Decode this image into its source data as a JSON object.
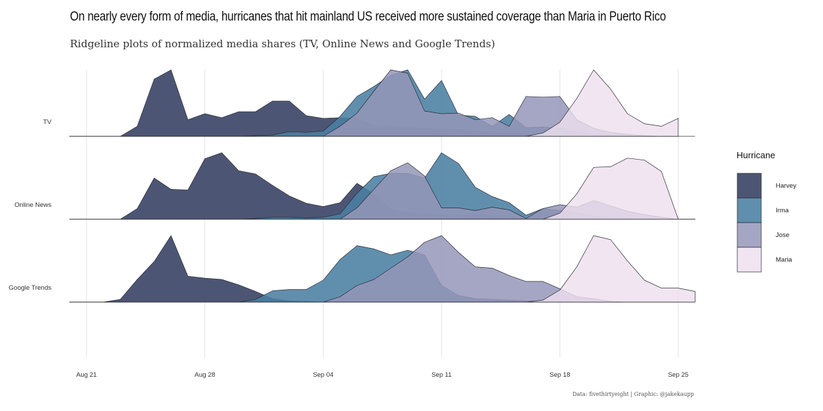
{
  "chart_data": {
    "type": "area",
    "title": "On nearly every form of media, hurricanes that hit mainland US received more sustained coverage than Maria in Puerto Rico",
    "subtitle": "Ridgeline plots of normalized media shares (TV, Online News and Google Trends)",
    "caption": "Data: fivethirtyeight | Graphic: @jakekaupp",
    "x_ticks": [
      "Aug 21",
      "Aug 28",
      "Sep 04",
      "Sep 11",
      "Sep 18",
      "Sep 25"
    ],
    "x_range": [
      "Aug 20",
      "Sep 26"
    ],
    "rows": [
      "TV",
      "Online News",
      "Google Trends"
    ],
    "legend": {
      "title": "Hurricane",
      "position": "right"
    },
    "grid": true,
    "colors": {
      "Harvey": "#3d4868",
      "Irma": "#4a80a3",
      "Jose": "#9596b8",
      "Maria": "#eddfee"
    },
    "dates": [
      "Aug 20",
      "Aug 21",
      "Aug 22",
      "Aug 23",
      "Aug 24",
      "Aug 25",
      "Aug 26",
      "Aug 27",
      "Aug 28",
      "Aug 29",
      "Aug 30",
      "Aug 31",
      "Sep 01",
      "Sep 02",
      "Sep 03",
      "Sep 04",
      "Sep 05",
      "Sep 06",
      "Sep 07",
      "Sep 08",
      "Sep 09",
      "Sep 10",
      "Sep 11",
      "Sep 12",
      "Sep 13",
      "Sep 14",
      "Sep 15",
      "Sep 16",
      "Sep 17",
      "Sep 18",
      "Sep 19",
      "Sep 20",
      "Sep 21",
      "Sep 22",
      "Sep 23",
      "Sep 24",
      "Sep 25",
      "Sep 26"
    ],
    "series": [
      {
        "row": "TV",
        "hurricane": "Harvey",
        "values": [
          0,
          0,
          0,
          0,
          0.15,
          0.86,
          1.0,
          0.25,
          0.34,
          0.28,
          0.37,
          0.37,
          0.53,
          0.53,
          0.31,
          0.27,
          0.28,
          0.27,
          0.17,
          0.14,
          0.13,
          0.12,
          0.11,
          0.1,
          0.08,
          0.06,
          0.05,
          0.04,
          0.03,
          0.02,
          0.02,
          0.01,
          0.01,
          0,
          0,
          0,
          0,
          null
        ]
      },
      {
        "row": "TV",
        "hurricane": "Irma",
        "values": [
          0,
          0,
          0,
          0,
          0,
          0,
          0,
          0,
          0,
          0,
          0,
          0.01,
          0.02,
          0.07,
          0.06,
          0.08,
          0.3,
          0.6,
          0.75,
          0.92,
          1.0,
          0.56,
          0.84,
          0.32,
          0.3,
          0.15,
          0.33,
          0.13,
          0.14,
          0.12,
          0.07,
          0.03,
          0.02,
          0.01,
          0,
          0,
          0,
          null
        ]
      },
      {
        "row": "TV",
        "hurricane": "Jose",
        "values": [
          0,
          0,
          0,
          0,
          0,
          0,
          0,
          0,
          0,
          0,
          0,
          0,
          0,
          0,
          0,
          0,
          0.15,
          0.35,
          0.68,
          1.0,
          0.95,
          0.38,
          0.34,
          0.35,
          0.25,
          0.28,
          0.15,
          0.6,
          0.59,
          0.6,
          0.25,
          0.12,
          0.06,
          0.03,
          0.01,
          0,
          0,
          null
        ]
      },
      {
        "row": "TV",
        "hurricane": "Maria",
        "values": [
          0,
          0,
          0,
          0,
          0,
          0,
          0,
          0,
          0,
          0,
          0,
          0,
          0,
          0,
          0,
          0,
          0,
          0,
          0,
          0,
          0,
          0,
          0,
          0,
          0,
          0,
          0,
          0,
          0.05,
          0.21,
          0.57,
          1.0,
          0.71,
          0.34,
          0.19,
          0.15,
          0.27,
          null
        ]
      },
      {
        "row": "Online News",
        "hurricane": "Harvey",
        "values": [
          0,
          0,
          0,
          0,
          0.16,
          0.62,
          0.45,
          0.44,
          0.91,
          1.0,
          0.73,
          0.68,
          0.51,
          0.35,
          0.24,
          0.19,
          0.25,
          0.54,
          0.38,
          0.15,
          0.1,
          0.07,
          0.06,
          0.06,
          0.07,
          0.05,
          0.05,
          0,
          0,
          0,
          0,
          0,
          0,
          0,
          0,
          0,
          0,
          0
        ]
      },
      {
        "row": "Online News",
        "hurricane": "Irma",
        "values": [
          0,
          0,
          0,
          0,
          0,
          0,
          0,
          0,
          0,
          0,
          0,
          0.01,
          0.03,
          0.03,
          0.02,
          0.03,
          0.08,
          0.39,
          0.64,
          0.69,
          0.69,
          0.62,
          1.0,
          0.84,
          0.48,
          0.34,
          0.25,
          0.06,
          0.16,
          0.13,
          0.1,
          0.05,
          0.03,
          0.01,
          0,
          0,
          0,
          0
        ]
      },
      {
        "row": "Online News",
        "hurricane": "Jose",
        "values": [
          0,
          0,
          0,
          0,
          0,
          0,
          0,
          0,
          0,
          0,
          0,
          0,
          0,
          0,
          0,
          0,
          0,
          0.17,
          0.45,
          0.73,
          0.85,
          0.65,
          0.17,
          0.17,
          0.13,
          0.18,
          0.14,
          0.01,
          0.16,
          0.22,
          0.18,
          0.28,
          0.2,
          0.12,
          0.07,
          0.03,
          0,
          0
        ]
      },
      {
        "row": "Online News",
        "hurricane": "Maria",
        "values": [
          0,
          0,
          0,
          0,
          0,
          0,
          0,
          0,
          0,
          0,
          0,
          0,
          0,
          0,
          0,
          0,
          0,
          0,
          0,
          0,
          0,
          0,
          0,
          0,
          0,
          0,
          0,
          0,
          0,
          0.09,
          0.38,
          0.78,
          0.79,
          0.92,
          0.89,
          0.72,
          0,
          0
        ]
      },
      {
        "row": "Google Trends",
        "hurricane": "Harvey",
        "values": [
          0,
          0,
          0,
          0.04,
          0.34,
          0.61,
          1.0,
          0.39,
          0.36,
          0.34,
          0.26,
          0.16,
          0.05,
          0.02,
          0.01,
          0,
          0,
          0,
          0,
          0,
          0,
          0,
          0,
          0,
          0,
          0,
          0,
          0,
          0,
          0,
          0,
          0,
          0,
          0,
          0,
          0,
          0,
          null
        ]
      },
      {
        "row": "Google Trends",
        "hurricane": "Irma",
        "values": [
          0,
          0,
          0,
          0,
          0,
          0,
          0,
          0,
          0,
          0,
          0,
          0.04,
          0.17,
          0.19,
          0.19,
          0.33,
          0.64,
          0.85,
          0.8,
          0.71,
          0.78,
          0.71,
          0.25,
          0.1,
          0.05,
          0.04,
          0.03,
          0.02,
          0.01,
          0.01,
          0,
          0,
          0,
          0,
          0,
          0,
          0,
          null
        ]
      },
      {
        "row": "Google Trends",
        "hurricane": "Jose",
        "values": [
          0,
          0,
          0,
          0,
          0,
          0,
          0,
          0,
          0,
          0,
          0,
          0,
          0,
          0,
          0,
          0,
          0.08,
          0.25,
          0.34,
          0.51,
          0.68,
          0.9,
          1.0,
          0.75,
          0.53,
          0.51,
          0.4,
          0.31,
          0.31,
          0.2,
          0.08,
          0.05,
          0.01,
          0,
          0,
          0,
          0,
          null
        ]
      },
      {
        "row": "Google Trends",
        "hurricane": "Maria",
        "values": [
          0,
          0,
          0,
          0,
          0,
          0,
          0,
          0,
          0,
          0,
          0,
          0,
          0,
          0,
          0,
          0,
          0,
          0,
          0,
          0,
          0,
          0,
          0,
          0,
          0,
          0,
          0,
          0,
          0.03,
          0.18,
          0.53,
          1.0,
          0.94,
          0.62,
          0.33,
          0.21,
          0.21,
          0.16
        ]
      }
    ]
  }
}
